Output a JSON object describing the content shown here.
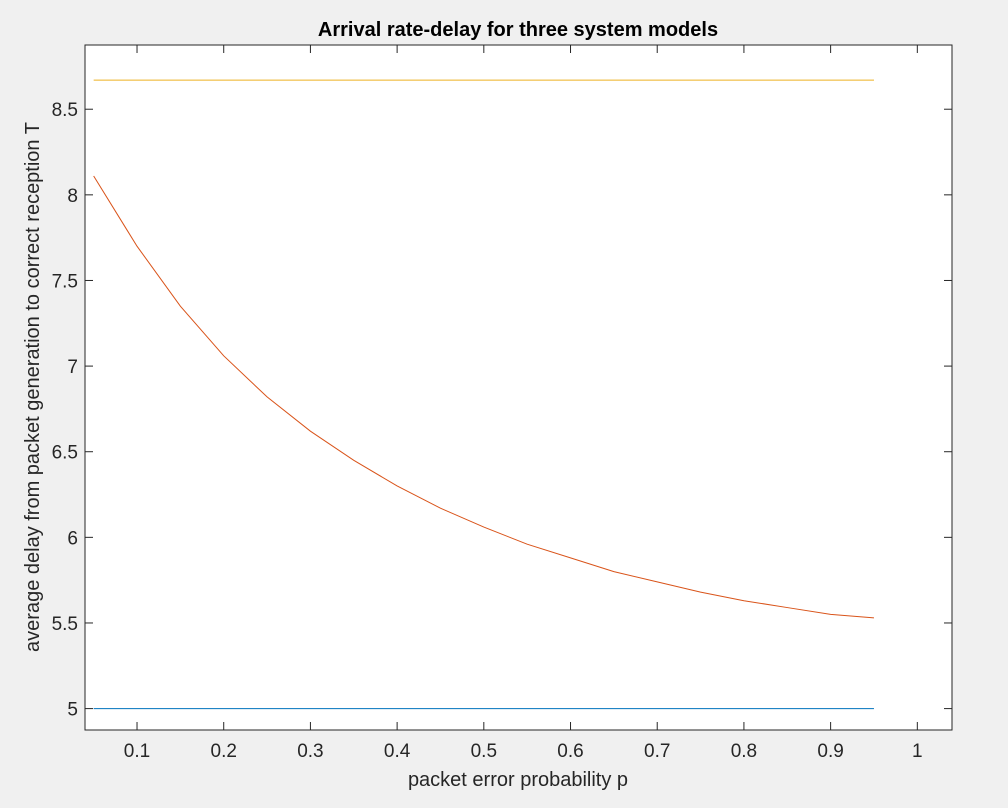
{
  "chart_data": {
    "type": "line",
    "title": "Arrival rate-delay for three system models",
    "xlabel": "packet error probability p",
    "ylabel": "average delay from packet generation to correct reception T",
    "xlim": [
      0.04,
      1.04
    ],
    "ylim": [
      4.875,
      8.875
    ],
    "xticks": [
      0.1,
      0.2,
      0.3,
      0.4,
      0.5,
      0.6,
      0.7,
      0.8,
      0.9,
      1
    ],
    "xtick_labels": [
      "0.1",
      "0.2",
      "0.3",
      "0.4",
      "0.5",
      "0.6",
      "0.7",
      "0.8",
      "0.9",
      "1"
    ],
    "yticks": [
      5,
      5.5,
      6,
      6.5,
      7,
      7.5,
      8,
      8.5
    ],
    "ytick_labels": [
      "5",
      "5.5",
      "6",
      "6.5",
      "7",
      "7.5",
      "8",
      "8.5"
    ],
    "grid": false,
    "legend": "none",
    "x": [
      0.05,
      0.1,
      0.15,
      0.2,
      0.25,
      0.3,
      0.35,
      0.4,
      0.45,
      0.5,
      0.55,
      0.6,
      0.65,
      0.7,
      0.75,
      0.8,
      0.85,
      0.9,
      0.95
    ],
    "series": [
      {
        "color": "#0072BD",
        "values": [
          5,
          5,
          5,
          5,
          5,
          5,
          5,
          5,
          5,
          5,
          5,
          5,
          5,
          5,
          5,
          5,
          5,
          5,
          5
        ]
      },
      {
        "color": "#D95319",
        "values": [
          8.11,
          7.7,
          7.35,
          7.06,
          6.82,
          6.62,
          6.45,
          6.3,
          6.17,
          6.06,
          5.96,
          5.88,
          5.8,
          5.74,
          5.68,
          5.63,
          5.59,
          5.55,
          5.53
        ]
      },
      {
        "color": "#EDB120",
        "values": [
          8.67,
          8.67,
          8.67,
          8.67,
          8.67,
          8.67,
          8.67,
          8.67,
          8.67,
          8.67,
          8.67,
          8.67,
          8.67,
          8.67,
          8.67,
          8.67,
          8.67,
          8.67,
          8.67
        ]
      }
    ]
  }
}
